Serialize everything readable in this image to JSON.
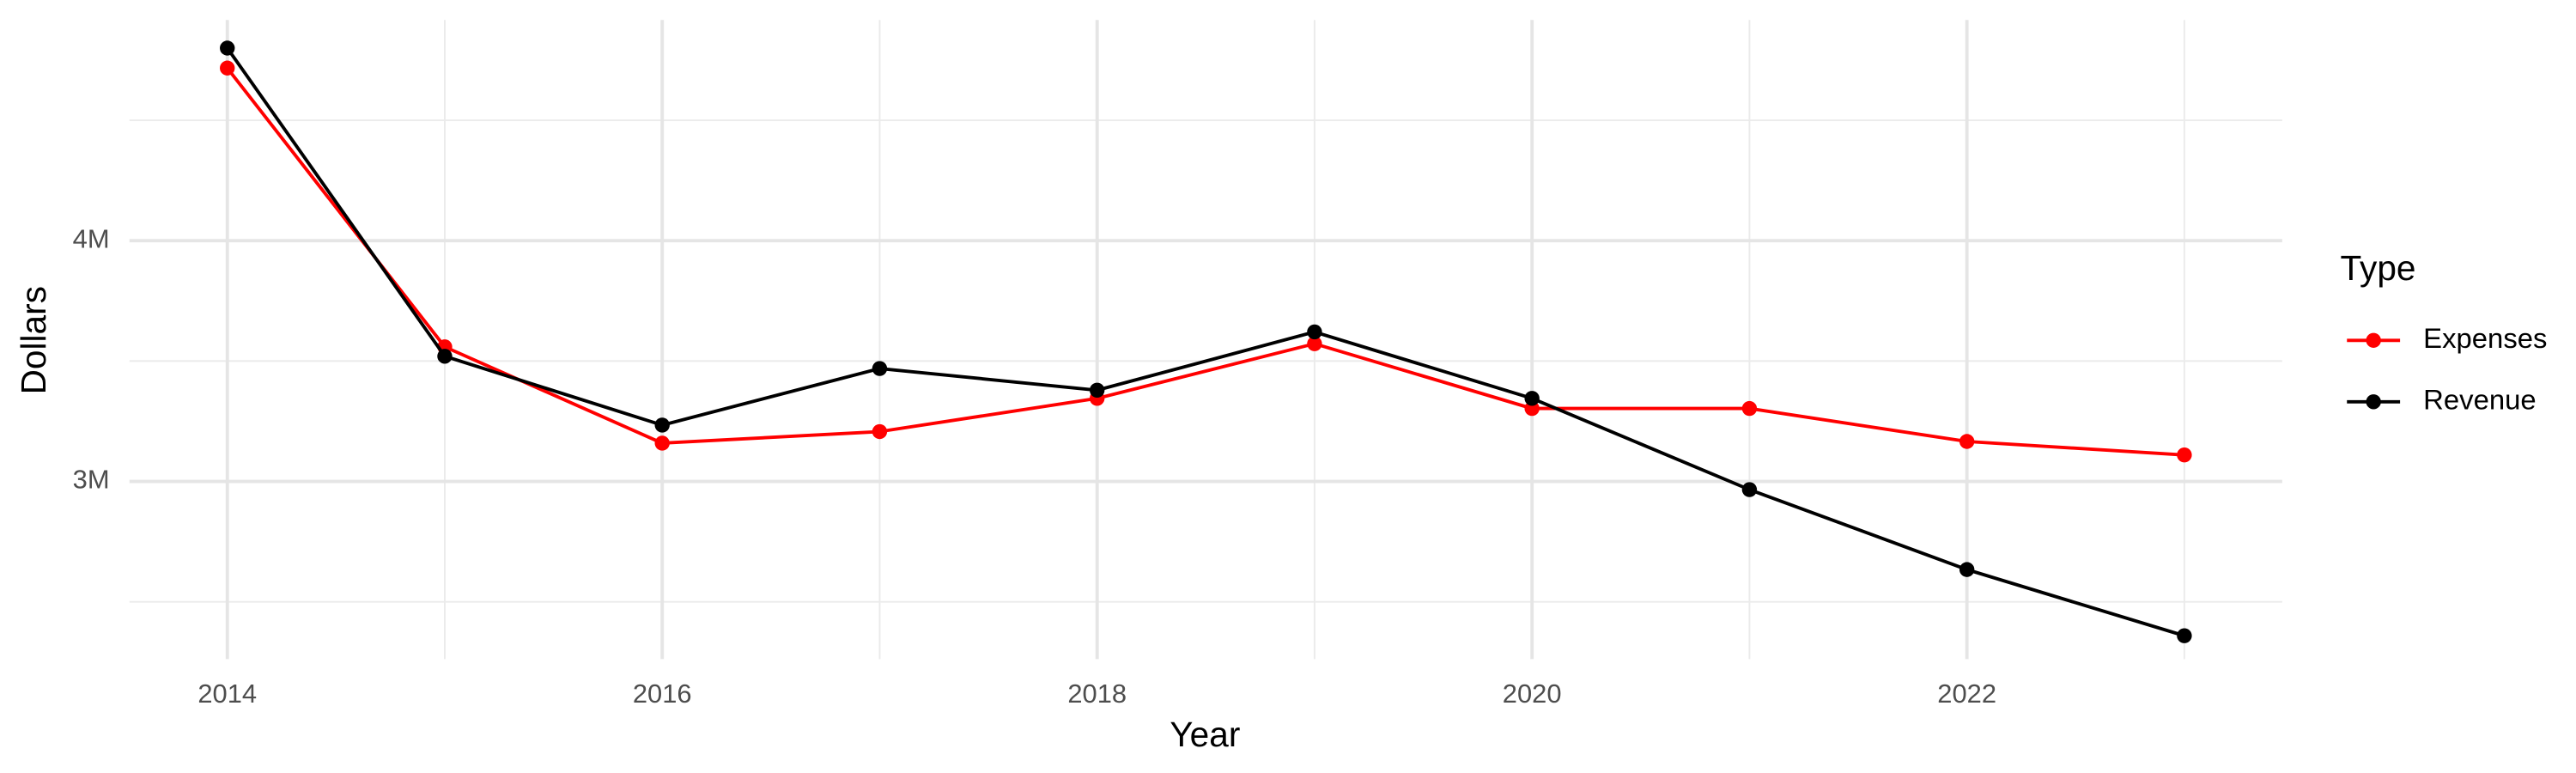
{
  "chart_data": {
    "type": "line",
    "x_label": "Year",
    "y_label": "Dollars",
    "legend_title": "Type",
    "x": [
      2014,
      2015,
      2016,
      2017,
      2018,
      2019,
      2020,
      2021,
      2022,
      2023
    ],
    "series": [
      {
        "name": "Expenses",
        "color": "#ff0000",
        "values": [
          4717000,
          3559000,
          3159000,
          3207000,
          3345000,
          3572000,
          3303000,
          3303000,
          3166000,
          3110000
        ]
      },
      {
        "name": "Revenue",
        "color": "#000000",
        "values": [
          4800000,
          3520000,
          3234000,
          3469000,
          3379000,
          3621000,
          3345000,
          2966000,
          2634000,
          2359000
        ]
      }
    ],
    "xlim": [
      2013.55,
      2023.45
    ],
    "xticks": [
      2014,
      2016,
      2018,
      2020,
      2022
    ],
    "minor_xticks": [
      2015,
      2017,
      2019,
      2021,
      2023
    ],
    "ylim": [
      2262000,
      4917000
    ],
    "yticks": [
      {
        "value": 3000000,
        "label": "3M"
      },
      {
        "value": 4000000,
        "label": "4M"
      }
    ],
    "minor_yticks": [
      2500000,
      3500000,
      4500000
    ],
    "grid": true,
    "legend": "right"
  }
}
